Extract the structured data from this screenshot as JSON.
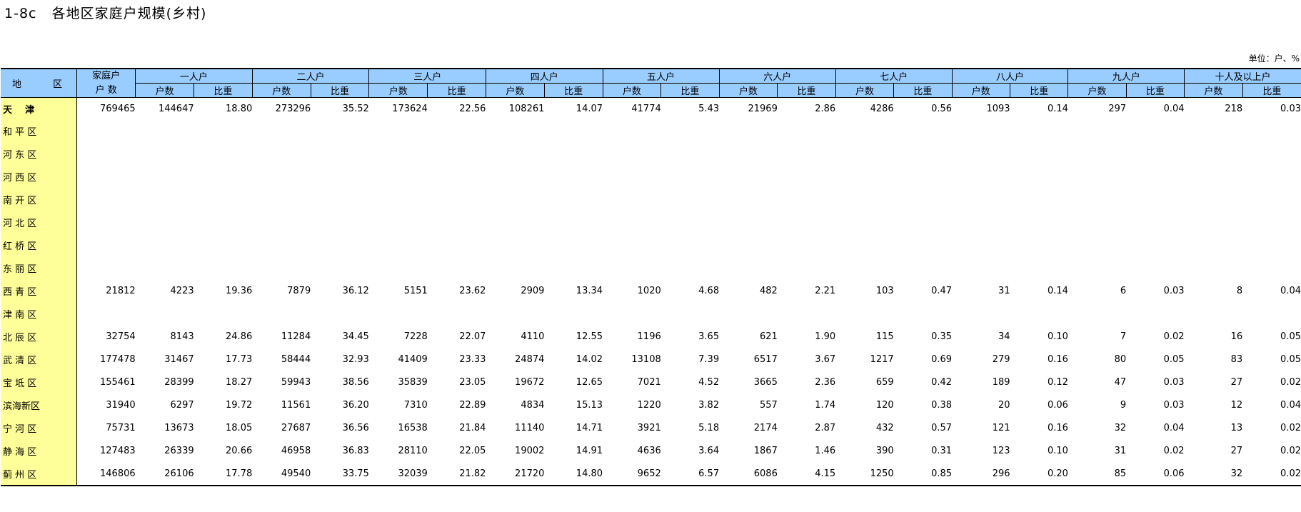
{
  "title": "1-8c   各地区家庭户规模(乡村)",
  "unit": "单位：户、%",
  "header": {
    "region": "地 区",
    "total_line1": "家庭户",
    "total_line2": "户  数",
    "groups": [
      "一人户",
      "二人户",
      "三人户",
      "四人户",
      "五人户",
      "六人户",
      "七人户",
      "八人户",
      "九人户",
      "十人及以上户"
    ],
    "sub_count": "户数",
    "sub_ratio": "比重"
  },
  "rows": [
    {
      "region": "天    津",
      "bold": true,
      "values": [
        "769465",
        "144647",
        "18.80",
        "273296",
        "35.52",
        "173624",
        "22.56",
        "108261",
        "14.07",
        "41774",
        "5.43",
        "21969",
        "2.86",
        "4286",
        "0.56",
        "1093",
        "0.14",
        "297",
        "0.04",
        "218",
        "0.03"
      ]
    },
    {
      "region": "和 平 区",
      "values": []
    },
    {
      "region": "河 东 区",
      "values": []
    },
    {
      "region": "河 西 区",
      "values": []
    },
    {
      "region": "南 开 区",
      "values": []
    },
    {
      "region": "河 北 区",
      "values": []
    },
    {
      "region": "红 桥 区",
      "values": []
    },
    {
      "region": "东 丽 区",
      "values": []
    },
    {
      "region": "西 青 区",
      "values": [
        "21812",
        "4223",
        "19.36",
        "7879",
        "36.12",
        "5151",
        "23.62",
        "2909",
        "13.34",
        "1020",
        "4.68",
        "482",
        "2.21",
        "103",
        "0.47",
        "31",
        "0.14",
        "6",
        "0.03",
        "8",
        "0.04"
      ]
    },
    {
      "region": "津 南 区",
      "values": []
    },
    {
      "region": "北 辰 区",
      "values": [
        "32754",
        "8143",
        "24.86",
        "11284",
        "34.45",
        "7228",
        "22.07",
        "4110",
        "12.55",
        "1196",
        "3.65",
        "621",
        "1.90",
        "115",
        "0.35",
        "34",
        "0.10",
        "7",
        "0.02",
        "16",
        "0.05"
      ]
    },
    {
      "region": "武 清 区",
      "values": [
        "177478",
        "31467",
        "17.73",
        "58444",
        "32.93",
        "41409",
        "23.33",
        "24874",
        "14.02",
        "13108",
        "7.39",
        "6517",
        "3.67",
        "1217",
        "0.69",
        "279",
        "0.16",
        "80",
        "0.05",
        "83",
        "0.05"
      ]
    },
    {
      "region": "宝 坻 区",
      "values": [
        "155461",
        "28399",
        "18.27",
        "59943",
        "38.56",
        "35839",
        "23.05",
        "19672",
        "12.65",
        "7021",
        "4.52",
        "3665",
        "2.36",
        "659",
        "0.42",
        "189",
        "0.12",
        "47",
        "0.03",
        "27",
        "0.02"
      ]
    },
    {
      "region": "滨海新区",
      "values": [
        "31940",
        "6297",
        "19.72",
        "11561",
        "36.20",
        "7310",
        "22.89",
        "4834",
        "15.13",
        "1220",
        "3.82",
        "557",
        "1.74",
        "120",
        "0.38",
        "20",
        "0.06",
        "9",
        "0.03",
        "12",
        "0.04"
      ]
    },
    {
      "region": "宁 河 区",
      "values": [
        "75731",
        "13673",
        "18.05",
        "27687",
        "36.56",
        "16538",
        "21.84",
        "11140",
        "14.71",
        "3921",
        "5.18",
        "2174",
        "2.87",
        "432",
        "0.57",
        "121",
        "0.16",
        "32",
        "0.04",
        "13",
        "0.02"
      ]
    },
    {
      "region": "静 海 区",
      "values": [
        "127483",
        "26339",
        "20.66",
        "46958",
        "36.83",
        "28110",
        "22.05",
        "19002",
        "14.91",
        "4636",
        "3.64",
        "1867",
        "1.46",
        "390",
        "0.31",
        "123",
        "0.10",
        "31",
        "0.02",
        "27",
        "0.02"
      ]
    },
    {
      "region": "蓟 州 区",
      "values": [
        "146806",
        "26106",
        "17.78",
        "49540",
        "33.75",
        "32039",
        "21.82",
        "21720",
        "14.80",
        "9652",
        "6.57",
        "6086",
        "4.15",
        "1250",
        "0.85",
        "296",
        "0.20",
        "85",
        "0.06",
        "32",
        "0.02"
      ]
    }
  ]
}
